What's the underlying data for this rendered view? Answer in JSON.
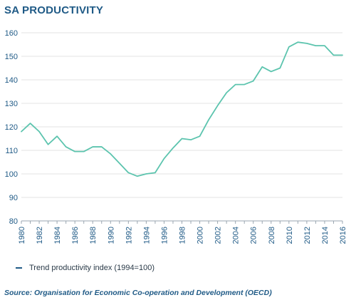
{
  "header": {
    "title": "SA PRODUCTIVITY"
  },
  "legend": {
    "label": "Trend productivity index (1994=100)"
  },
  "footer": {
    "source": "Source: Organisation for Economic Co-operation and Development (OECD)"
  },
  "colors": {
    "line": "#5cc4ae",
    "axis_text": "#1f5a86",
    "grid": "#e3e3e3",
    "legend_swatch": "#1f5a86"
  },
  "chart_data": {
    "type": "line",
    "title": "SA PRODUCTIVITY",
    "xlabel": "",
    "ylabel": "",
    "xlim": [
      1980,
      2016
    ],
    "ylim": [
      80,
      160
    ],
    "grid": true,
    "legend_position": "bottom-left",
    "x_ticks": [
      "1980",
      "1982",
      "1984",
      "1986",
      "1988",
      "1990",
      "1992",
      "1994",
      "1996",
      "1998",
      "2000",
      "2002",
      "2004",
      "2006",
      "2008",
      "2010",
      "2012",
      "2014",
      "2016"
    ],
    "y_ticks": [
      "80",
      "90",
      "100",
      "110",
      "120",
      "130",
      "140",
      "150",
      "160"
    ],
    "series": [
      {
        "name": "Trend productivity index (1994=100)",
        "x": [
          1980,
          1981,
          1982,
          1983,
          1984,
          1985,
          1986,
          1987,
          1988,
          1989,
          1990,
          1991,
          1992,
          1993,
          1994,
          1995,
          1996,
          1997,
          1998,
          1999,
          2000,
          2001,
          2002,
          2003,
          2004,
          2005,
          2006,
          2007,
          2008,
          2009,
          2010,
          2011,
          2012,
          2013,
          2014,
          2015,
          2016
        ],
        "values": [
          118,
          121.5,
          118,
          112.5,
          116,
          111.5,
          109.5,
          109.5,
          111.5,
          111.5,
          108.5,
          104.5,
          100.5,
          99,
          100,
          100.5,
          106.5,
          111,
          115,
          114.5,
          116,
          123,
          129,
          134.5,
          138,
          138,
          139.5,
          145.5,
          143.5,
          145,
          154,
          156,
          155.5,
          154.5,
          154.5,
          150.5,
          150.5
        ]
      }
    ]
  }
}
